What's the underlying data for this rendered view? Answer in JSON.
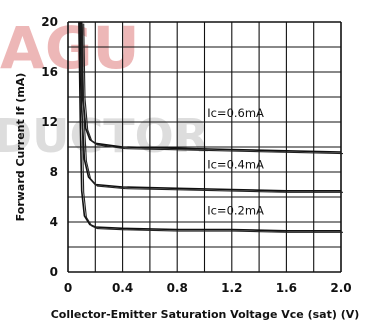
{
  "watermark": {
    "top_text": "AGU",
    "top_color": "#e8a0a0",
    "bottom_text": "DUCTOR",
    "bottom_color": "#c8c8c8"
  },
  "chart_data": {
    "type": "line",
    "title": "",
    "xlabel": "Collector-Emitter Saturation Voltage Vce (sat) (V)",
    "ylabel": "Forward Current If (mA)",
    "xlim": [
      0,
      2.0
    ],
    "ylim": [
      0,
      20
    ],
    "x_ticks": [
      "0",
      "0.4",
      "0.8",
      "1.2",
      "1.6",
      "2.0"
    ],
    "y_ticks": [
      "0",
      "4",
      "8",
      "12",
      "16",
      "20"
    ],
    "grid": true,
    "series": [
      {
        "name": "Ic=0.6mA",
        "points": [
          [
            0.1,
            20
          ],
          [
            0.11,
            14
          ],
          [
            0.13,
            11.5
          ],
          [
            0.16,
            10.6
          ],
          [
            0.2,
            10.3
          ],
          [
            0.4,
            10.0
          ],
          [
            0.8,
            9.9
          ],
          [
            1.2,
            9.8
          ],
          [
            1.6,
            9.7
          ],
          [
            2.0,
            9.6
          ]
        ]
      },
      {
        "name": "Ic=0.4mA",
        "points": [
          [
            0.09,
            20
          ],
          [
            0.1,
            13
          ],
          [
            0.12,
            9.0
          ],
          [
            0.15,
            7.6
          ],
          [
            0.2,
            7.0
          ],
          [
            0.4,
            6.8
          ],
          [
            0.8,
            6.7
          ],
          [
            1.2,
            6.6
          ],
          [
            1.6,
            6.5
          ],
          [
            2.0,
            6.5
          ]
        ]
      },
      {
        "name": "Ic=0.2mA",
        "points": [
          [
            0.08,
            20
          ],
          [
            0.09,
            12
          ],
          [
            0.1,
            6.5
          ],
          [
            0.12,
            4.5
          ],
          [
            0.16,
            3.8
          ],
          [
            0.2,
            3.6
          ],
          [
            0.4,
            3.5
          ],
          [
            0.8,
            3.4
          ],
          [
            1.2,
            3.4
          ],
          [
            1.6,
            3.3
          ],
          [
            2.0,
            3.3
          ]
        ]
      }
    ]
  }
}
